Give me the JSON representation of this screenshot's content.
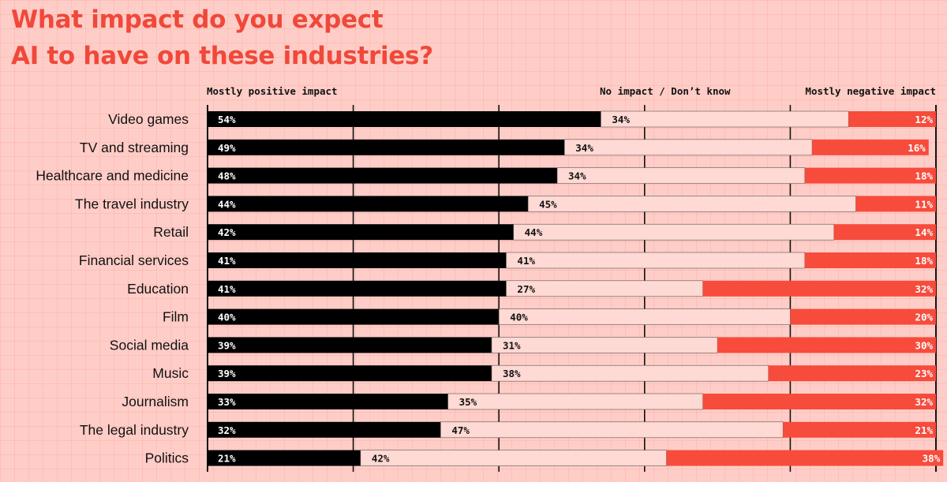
{
  "title_lines": [
    "What impact do you expect",
    "AI to have on these industries?"
  ],
  "column_labels": {
    "positive": "Mostly positive impact",
    "none": "No impact / Don’t know",
    "negative": "Mostly negative impact"
  },
  "colors": {
    "background": "#ffcdc7",
    "positive": "#000000",
    "none": "#ffd9d4",
    "negative": "#f74b3c",
    "title": "#f0483a"
  },
  "chart_data": {
    "type": "bar",
    "orientation": "horizontal-stacked-100",
    "categories": [
      "Video games",
      "TV and streaming",
      "Healthcare and medicine",
      "The travel industry",
      "Retail",
      "Financial services",
      "Education",
      "Film",
      "Social media",
      "Music",
      "Journalism",
      "The legal industry",
      "Politics"
    ],
    "series": [
      {
        "name": "Mostly positive impact",
        "values": [
          54,
          49,
          48,
          44,
          42,
          41,
          41,
          40,
          39,
          39,
          33,
          32,
          21
        ]
      },
      {
        "name": "No impact / Don’t know",
        "values": [
          34,
          34,
          34,
          45,
          44,
          41,
          27,
          40,
          31,
          38,
          35,
          47,
          42
        ]
      },
      {
        "name": "Mostly negative impact",
        "values": [
          12,
          16,
          18,
          11,
          14,
          18,
          32,
          20,
          30,
          23,
          32,
          21,
          38
        ]
      }
    ],
    "value_suffix": "%",
    "xlim": [
      0,
      100
    ],
    "grid": true
  }
}
